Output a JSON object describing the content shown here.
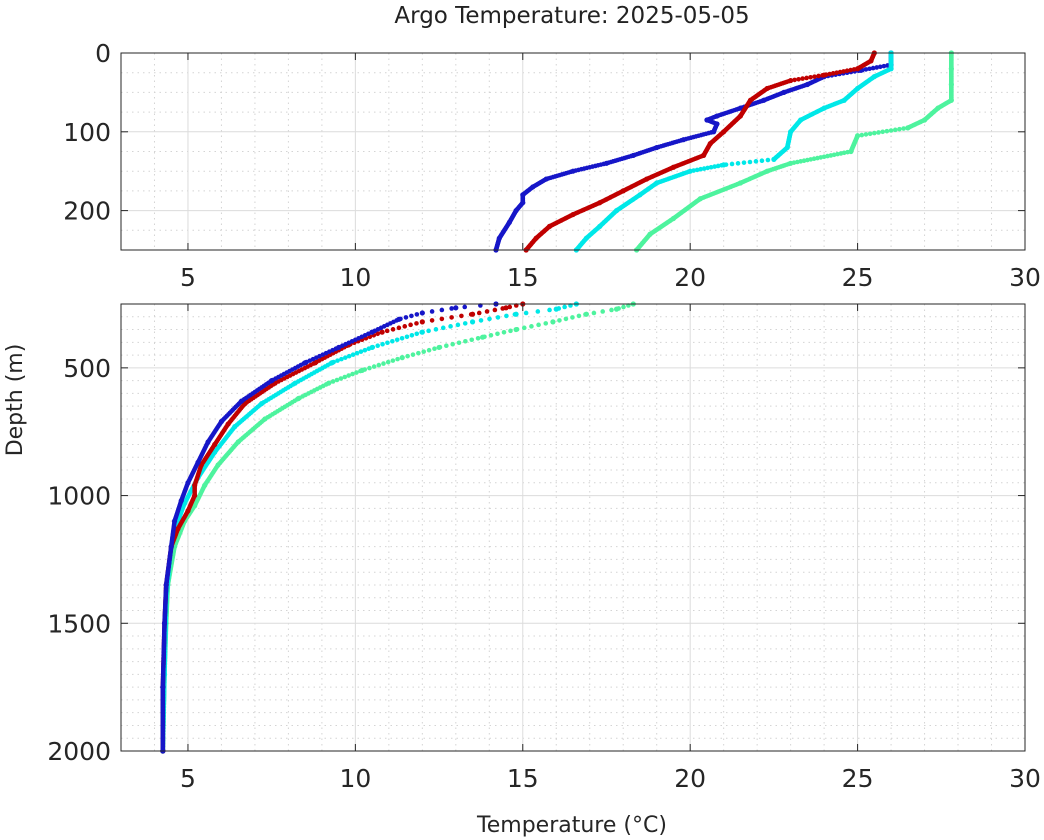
{
  "figure": {
    "title": "Argo Temperature: 2025-05-05",
    "xlabel": "Temperature (°C)",
    "ylabel": "Depth (m)"
  },
  "chart_data": [
    {
      "type": "scatter",
      "panel": "upper",
      "xlim": [
        3,
        30
      ],
      "ylim": [
        0,
        250
      ],
      "y_reversed": true,
      "xticks": [
        5,
        10,
        15,
        20,
        25,
        30
      ],
      "yticks": [
        0,
        100,
        200
      ],
      "grid": true,
      "minor_grid": true,
      "series": [
        {
          "color": "#1616c8",
          "points": [
            [
              26.0,
              0
            ],
            [
              26.0,
              15
            ],
            [
              25.1,
              22
            ],
            [
              24.0,
              30
            ],
            [
              23.5,
              40
            ],
            [
              22.8,
              50
            ],
            [
              22.2,
              60
            ],
            [
              21.5,
              70
            ],
            [
              20.8,
              80
            ],
            [
              20.5,
              85
            ],
            [
              20.8,
              90
            ],
            [
              20.7,
              100
            ],
            [
              19.8,
              110
            ],
            [
              19.0,
              120
            ],
            [
              18.3,
              130
            ],
            [
              17.5,
              140
            ],
            [
              16.5,
              150
            ],
            [
              15.7,
              160
            ],
            [
              15.3,
              170
            ],
            [
              15.0,
              180
            ],
            [
              15.0,
              190
            ],
            [
              14.8,
              200
            ],
            [
              14.6,
              215
            ],
            [
              14.3,
              235
            ],
            [
              14.2,
              250
            ]
          ]
        },
        {
          "color": "#c00000",
          "points": [
            [
              25.5,
              0
            ],
            [
              25.4,
              10
            ],
            [
              25.0,
              20
            ],
            [
              24.0,
              28
            ],
            [
              23.0,
              35
            ],
            [
              22.3,
              45
            ],
            [
              21.8,
              60
            ],
            [
              21.5,
              80
            ],
            [
              21.0,
              100
            ],
            [
              20.6,
              115
            ],
            [
              20.4,
              130
            ],
            [
              19.5,
              145
            ],
            [
              18.7,
              160
            ],
            [
              18.0,
              175
            ],
            [
              17.3,
              190
            ],
            [
              16.5,
              205
            ],
            [
              15.8,
              220
            ],
            [
              15.4,
              235
            ],
            [
              15.1,
              250
            ]
          ]
        },
        {
          "color": "#00e8e8",
          "points": [
            [
              26.0,
              0
            ],
            [
              26.0,
              20
            ],
            [
              25.5,
              30
            ],
            [
              25.0,
              45
            ],
            [
              24.6,
              60
            ],
            [
              24.0,
              70
            ],
            [
              23.3,
              85
            ],
            [
              23.0,
              100
            ],
            [
              22.9,
              120
            ],
            [
              22.5,
              135
            ],
            [
              21.0,
              142
            ],
            [
              20.0,
              150
            ],
            [
              19.0,
              165
            ],
            [
              18.5,
              180
            ],
            [
              17.8,
              200
            ],
            [
              17.3,
              220
            ],
            [
              16.9,
              235
            ],
            [
              16.6,
              250
            ]
          ]
        },
        {
          "color": "#4ef39e",
          "points": [
            [
              27.8,
              0
            ],
            [
              27.8,
              20
            ],
            [
              27.8,
              40
            ],
            [
              27.8,
              60
            ],
            [
              27.4,
              70
            ],
            [
              27.0,
              85
            ],
            [
              26.5,
              95
            ],
            [
              25.0,
              105
            ],
            [
              24.8,
              125
            ],
            [
              23.0,
              140
            ],
            [
              22.3,
              150
            ],
            [
              21.5,
              165
            ],
            [
              20.3,
              185
            ],
            [
              19.5,
              210
            ],
            [
              18.8,
              230
            ],
            [
              18.4,
              250
            ]
          ]
        }
      ]
    },
    {
      "type": "scatter",
      "panel": "lower",
      "xlim": [
        3,
        30
      ],
      "ylim": [
        250,
        2000
      ],
      "y_reversed": true,
      "xticks": [
        5,
        10,
        15,
        20,
        25,
        30
      ],
      "yticks": [
        500,
        1000,
        1500,
        2000
      ],
      "grid": true,
      "minor_grid": true,
      "series": [
        {
          "color": "#4ef39e",
          "points": [
            [
              18.3,
              250
            ],
            [
              17.8,
              270
            ],
            [
              16.9,
              290
            ],
            [
              15.9,
              320
            ],
            [
              14.8,
              350
            ],
            [
              13.8,
              380
            ],
            [
              12.5,
              420
            ],
            [
              11.4,
              460
            ],
            [
              10.2,
              510
            ],
            [
              9.2,
              560
            ],
            [
              8.3,
              620
            ],
            [
              7.3,
              700
            ],
            [
              6.5,
              790
            ],
            [
              5.9,
              880
            ],
            [
              5.5,
              960
            ],
            [
              5.2,
              1040
            ],
            [
              4.9,
              1100
            ],
            [
              4.6,
              1200
            ],
            [
              4.4,
              1350
            ],
            [
              4.35,
              1500
            ],
            [
              4.3,
              1700
            ],
            [
              4.25,
              2000
            ]
          ]
        },
        {
          "color": "#00e8e8",
          "points": [
            [
              16.6,
              250
            ],
            [
              16.0,
              270
            ],
            [
              14.8,
              290
            ],
            [
              13.5,
              320
            ],
            [
              12.0,
              360
            ],
            [
              10.5,
              420
            ],
            [
              9.3,
              480
            ],
            [
              8.2,
              560
            ],
            [
              7.2,
              640
            ],
            [
              6.4,
              730
            ],
            [
              5.8,
              830
            ],
            [
              5.3,
              930
            ],
            [
              4.9,
              1030
            ],
            [
              4.7,
              1100
            ],
            [
              4.5,
              1200
            ],
            [
              4.35,
              1400
            ],
            [
              4.3,
              1700
            ],
            [
              4.25,
              2000
            ]
          ]
        },
        {
          "color": "#c00000",
          "points": [
            [
              15.0,
              250
            ],
            [
              14.5,
              265
            ],
            [
              13.5,
              290
            ],
            [
              12.0,
              320
            ],
            [
              10.8,
              360
            ],
            [
              9.8,
              410
            ],
            [
              8.8,
              480
            ],
            [
              7.6,
              560
            ],
            [
              6.7,
              640
            ],
            [
              6.2,
              720
            ],
            [
              5.8,
              800
            ],
            [
              5.4,
              880
            ],
            [
              5.2,
              960
            ],
            [
              5.2,
              1000
            ],
            [
              5.0,
              1060
            ],
            [
              4.7,
              1130
            ],
            [
              4.5,
              1200
            ],
            [
              4.35,
              1350
            ],
            [
              4.3,
              1500
            ],
            [
              4.25,
              1750
            ],
            [
              4.25,
              2000
            ]
          ]
        },
        {
          "color": "#1616c8",
          "points": [
            [
              14.2,
              250
            ],
            [
              13.0,
              265
            ],
            [
              12.0,
              285
            ],
            [
              11.3,
              310
            ],
            [
              10.5,
              360
            ],
            [
              9.5,
              420
            ],
            [
              8.5,
              480
            ],
            [
              7.5,
              550
            ],
            [
              6.6,
              630
            ],
            [
              6.0,
              710
            ],
            [
              5.6,
              790
            ],
            [
              5.3,
              870
            ],
            [
              5.0,
              950
            ],
            [
              4.8,
              1020
            ],
            [
              4.6,
              1100
            ],
            [
              4.5,
              1200
            ],
            [
              4.35,
              1350
            ],
            [
              4.3,
              1500
            ],
            [
              4.25,
              1750
            ],
            [
              4.25,
              2000
            ]
          ]
        }
      ]
    }
  ]
}
